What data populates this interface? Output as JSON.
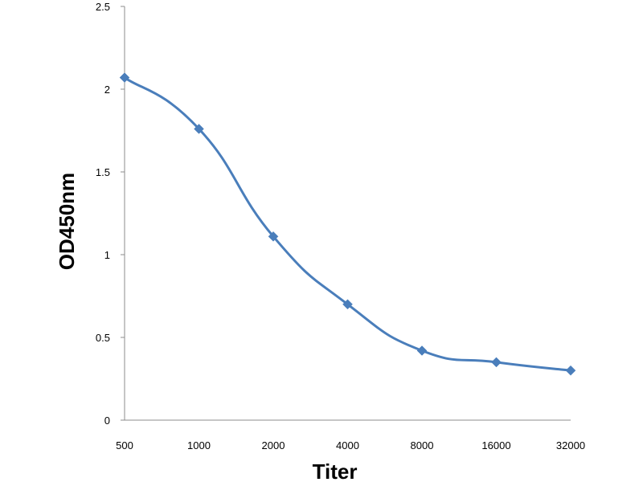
{
  "chart_data": {
    "type": "line",
    "title": "",
    "xlabel": "Titer",
    "ylabel": "OD450nm",
    "x_scale": "log2-categorical",
    "categories": [
      "500",
      "1000",
      "2000",
      "4000",
      "8000",
      "16000",
      "32000"
    ],
    "series": [
      {
        "values": [
          2.07,
          1.76,
          1.11,
          0.7,
          0.42,
          0.35,
          0.3
        ],
        "color": "#4a7ebb",
        "marker": "diamond",
        "smooth": true
      }
    ],
    "ylim": [
      0,
      2.5
    ],
    "yticks": [
      "0",
      "0.5",
      "1",
      "1.5",
      "2",
      "2.5"
    ],
    "grid": false,
    "legend": "none"
  }
}
